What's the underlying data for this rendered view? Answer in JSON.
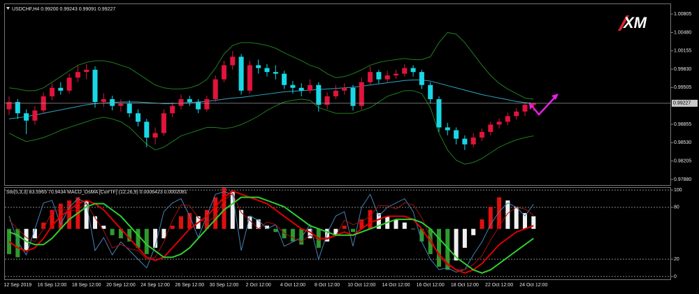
{
  "chart_data": [
    {
      "type": "candlestick",
      "title": "USDCHF,H4  0.99200 0.99243 0.99091 0.99227",
      "watermark": "XM",
      "categories": [
        null,
        "12 Sep 2019",
        null,
        null,
        null,
        "16 Sep 12:00",
        null,
        null,
        null,
        "18 Sep 12:00",
        null,
        null,
        null,
        "20 Sep 12:00",
        null,
        null,
        null,
        "24 Sep 12:00",
        null,
        null,
        null,
        "26 Sep 12:00",
        null,
        null,
        null,
        "30 Sep 12:00",
        null,
        null,
        null,
        "2 Oct 12:00",
        null,
        null,
        null,
        "4 Oct 12:00",
        null,
        null,
        null,
        "8 Oct 12:00",
        null,
        null,
        null,
        "10 Oct 12:00",
        null,
        null,
        null,
        "14 Oct 12:00",
        null,
        null,
        null,
        "16 Oct 12:00",
        null,
        null,
        null,
        "18 Oct 12:00",
        null,
        null,
        null,
        "22 Oct 12:00",
        null,
        null,
        null,
        "24 Oct 12:00"
      ],
      "open": [
        0.9912,
        0.9925,
        0.9905,
        0.9892,
        0.991,
        0.9935,
        0.995,
        0.9945,
        0.9968,
        0.9978,
        0.9982,
        0.9925,
        0.993,
        0.9918,
        0.9922,
        0.9905,
        0.989,
        0.9862,
        0.987,
        0.9905,
        0.9918,
        0.993,
        0.9925,
        0.9912,
        0.993,
        0.9965,
        0.999,
        1.0005,
        0.9945,
        0.999,
        0.9985,
        0.9978,
        0.9975,
        0.9955,
        0.995,
        0.9945,
        0.9955,
        0.992,
        0.9935,
        0.9945,
        0.995,
        0.9918,
        0.996,
        0.9978,
        0.9965,
        0.9972,
        0.9975,
        0.9985,
        0.9978,
        0.9955,
        0.993,
        0.988,
        0.9875,
        0.986,
        0.985,
        0.9862,
        0.9872,
        0.9885,
        0.989,
        0.99,
        0.9908,
        0.992
      ],
      "high": [
        0.9935,
        0.993,
        0.9912,
        0.9918,
        0.9942,
        0.9958,
        0.996,
        0.9975,
        0.999,
        0.9992,
        0.9988,
        0.994,
        0.9936,
        0.993,
        0.9928,
        0.9912,
        0.9895,
        0.988,
        0.9912,
        0.9925,
        0.9938,
        0.9936,
        0.993,
        0.9936,
        0.9972,
        0.9998,
        1.0015,
        1.001,
        0.9998,
        1.0,
        0.9992,
        0.999,
        0.998,
        0.9962,
        0.9958,
        0.9965,
        0.996,
        0.9942,
        0.9955,
        0.9958,
        0.9955,
        0.9968,
        0.9988,
        0.9982,
        0.998,
        0.9982,
        0.9992,
        0.999,
        0.9982,
        0.996,
        0.9935,
        0.9888,
        0.988,
        0.9866,
        0.987,
        0.9878,
        0.989,
        0.9896,
        0.9906,
        0.9914,
        0.9924,
        0.99243
      ],
      "low": [
        0.9902,
        0.9895,
        0.9868,
        0.9885,
        0.9904,
        0.9928,
        0.9938,
        0.994,
        0.996,
        0.9965,
        0.9915,
        0.9916,
        0.991,
        0.9908,
        0.9898,
        0.9882,
        0.9845,
        0.985,
        0.9865,
        0.9898,
        0.9912,
        0.9918,
        0.9905,
        0.9908,
        0.9925,
        0.996,
        0.9982,
        0.9938,
        0.994,
        0.9975,
        0.997,
        0.9965,
        0.9948,
        0.994,
        0.9935,
        0.994,
        0.9908,
        0.9912,
        0.993,
        0.9938,
        0.991,
        0.9912,
        0.9955,
        0.9958,
        0.996,
        0.9966,
        0.997,
        0.997,
        0.9948,
        0.9922,
        0.9872,
        0.9866,
        0.985,
        0.984,
        0.9845,
        0.9856,
        0.9866,
        0.9878,
        0.9884,
        0.9894,
        0.99,
        0.99091
      ],
      "close": [
        0.9925,
        0.9905,
        0.9892,
        0.991,
        0.9935,
        0.995,
        0.9945,
        0.9968,
        0.9978,
        0.9982,
        0.9925,
        0.993,
        0.9918,
        0.9922,
        0.9905,
        0.989,
        0.9862,
        0.987,
        0.9905,
        0.9918,
        0.993,
        0.9925,
        0.9912,
        0.993,
        0.9965,
        0.999,
        1.0005,
        0.9945,
        0.999,
        0.9985,
        0.9978,
        0.9975,
        0.9955,
        0.995,
        0.9945,
        0.9955,
        0.992,
        0.9935,
        0.9945,
        0.995,
        0.9918,
        0.996,
        0.9978,
        0.9965,
        0.9972,
        0.9975,
        0.9985,
        0.9978,
        0.9955,
        0.993,
        0.988,
        0.9875,
        0.986,
        0.985,
        0.9862,
        0.9872,
        0.9885,
        0.989,
        0.99,
        0.9908,
        0.992,
        0.99227
      ],
      "up_color": "#e0143c",
      "down_color": "#19d7e6",
      "lines": [
        {
          "color": "#2aa7c4",
          "width": 1,
          "values": [
            0.9895,
            0.9897,
            0.9899,
            0.9902,
            0.9905,
            0.9908,
            0.9911,
            0.9914,
            0.9917,
            0.992,
            0.9922,
            0.9923,
            0.9924,
            0.9925,
            0.9925,
            0.9925,
            0.9924,
            0.9923,
            0.9922,
            0.9922,
            0.9923,
            0.9924,
            0.9925,
            0.9926,
            0.9928,
            0.993,
            0.9932,
            0.9933,
            0.9935,
            0.9937,
            0.9939,
            0.9941,
            0.9943,
            0.9944,
            0.9945,
            0.9946,
            0.9947,
            0.9948,
            0.9949,
            0.995,
            0.9951,
            0.9953,
            0.9955,
            0.9957,
            0.9959,
            0.9961,
            0.9963,
            0.9964,
            0.9964,
            0.9962,
            0.9958,
            0.9954,
            0.995,
            0.9946,
            0.9942,
            0.9938,
            0.9935,
            0.9932,
            0.9929,
            0.9926,
            0.9924,
            0.9922
          ]
        },
        {
          "color": "#1f7f1f",
          "width": 1,
          "values": [
            0.995,
            0.9948,
            0.9945,
            0.9945,
            0.995,
            0.996,
            0.997,
            0.998,
            0.999,
            0.9995,
            0.9998,
            0.9998,
            0.9995,
            0.999,
            0.9985,
            0.9975,
            0.9965,
            0.9955,
            0.995,
            0.9948,
            0.9948,
            0.995,
            0.9955,
            0.9965,
            0.9985,
            1.001,
            1.0025,
            1.003,
            1.003,
            1.0028,
            1.0025,
            1.002,
            1.0012,
            1.0005,
            0.9998,
            0.999,
            0.9985,
            0.9975,
            0.9968,
            0.997,
            0.9975,
            0.9982,
            0.999,
            0.9995,
            0.9998,
            1.0,
            1.0002,
            1.0,
            1.0,
            1.0005,
            1.003,
            1.0048,
            1.0045,
            1.003,
            1.001,
            0.999,
            0.9972,
            0.9958,
            0.9948,
            0.994,
            0.9932,
            0.993
          ]
        },
        {
          "color": "#1f7f1f",
          "width": 1,
          "values": [
            0.987,
            0.9862,
            0.9855,
            0.9858,
            0.9862,
            0.9868,
            0.9875,
            0.988,
            0.9885,
            0.989,
            0.9895,
            0.9898,
            0.9895,
            0.989,
            0.988,
            0.9865,
            0.985,
            0.984,
            0.9845,
            0.9855,
            0.9865,
            0.987,
            0.9875,
            0.988,
            0.988,
            0.9878,
            0.988,
            0.9885,
            0.9892,
            0.99,
            0.991,
            0.9918,
            0.9925,
            0.9928,
            0.993,
            0.9928,
            0.9915,
            0.991,
            0.9905,
            0.9905,
            0.9905,
            0.991,
            0.9915,
            0.9925,
            0.9935,
            0.994,
            0.9945,
            0.9945,
            0.994,
            0.9915,
            0.987,
            0.984,
            0.9822,
            0.9815,
            0.9818,
            0.9825,
            0.9835,
            0.9845,
            0.9852,
            0.9858,
            0.9862,
            0.9865
          ]
        }
      ],
      "ylim": [
        0.9778,
        1.0098
      ],
      "yticks": [
        1.00805,
        {
          "value": 1.0048,
          "label": "1.00480"
        },
        1.00155,
        {
          "value": 0.9983,
          "label": "0.99830"
        },
        0.99505,
        0.98855,
        {
          "value": 0.9853,
          "label": "0.98530"
        },
        0.98205,
        {
          "value": 0.9788,
          "label": "0.97880"
        }
      ]
    },
    {
      "type": "oscillator",
      "title": "Sto(5,3,3) 83.5965 70.9434 MACD_OsMA [CurrTF] (12,26,9) 0.0006423 0.0002081",
      "ylim": [
        -3.3,
        102.5
      ],
      "yticks": [
        100,
        80,
        20,
        0
      ],
      "y2lim": [
        -0.0016,
        0.0013
      ],
      "histogram": {
        "axis": "y2",
        "up_color": "#e01010",
        "down_color": "#2e9a2e",
        "fade_color": "#f0f0f0",
        "values": [
          -0.0008,
          -0.0009,
          -0.0007,
          -0.0003,
          0.0002,
          0.0006,
          0.0008,
          0.0009,
          0.001,
          0.0009,
          0.0004,
          0.0001,
          -0.0002,
          -0.0003,
          -0.0004,
          -0.0006,
          -0.0008,
          -0.0006,
          -0.0003,
          0.0001,
          0.0004,
          0.0005,
          0.0004,
          0.0006,
          0.001,
          0.0013,
          0.0012,
          0.0006,
          0.0004,
          0.0003,
          0.0001,
          -0.0001,
          -0.0003,
          -0.0004,
          -0.0005,
          -0.0003,
          -0.0006,
          -0.0004,
          -0.0002,
          0.0001,
          -0.0001,
          0.0003,
          0.0006,
          0.0005,
          0.0004,
          0.0003,
          0.0002,
          0.0,
          -0.0004,
          -0.0008,
          -0.0012,
          -0.0013,
          -0.001,
          -0.0006,
          -0.0002,
          0.0003,
          0.0007,
          0.001,
          0.0009,
          0.0007,
          0.0005,
          0.0004
        ]
      },
      "lines": [
        {
          "color": "#4682b4",
          "width": 1,
          "axis": "y",
          "values": [
            70,
            40,
            25,
            55,
            85,
            88,
            60,
            80,
            90,
            85,
            30,
            45,
            25,
            40,
            30,
            20,
            10,
            35,
            75,
            85,
            90,
            70,
            45,
            70,
            95,
            98,
            95,
            30,
            70,
            65,
            55,
            60,
            35,
            40,
            45,
            60,
            20,
            50,
            70,
            75,
            35,
            80,
            95,
            70,
            80,
            85,
            90,
            75,
            40,
            20,
            8,
            10,
            5,
            8,
            25,
            40,
            60,
            75,
            85,
            80,
            70,
            83.5965
          ]
        },
        {
          "color": "#a01010",
          "width": 1,
          "axis": "y",
          "values": [
            65,
            55,
            45,
            40,
            55,
            75,
            78,
            76,
            77,
            85,
            68,
            53,
            33,
            37,
            32,
            30,
            20,
            22,
            40,
            65,
            83,
            82,
            68,
            62,
            70,
            88,
            96,
            74,
            65,
            55,
            63,
            60,
            50,
            45,
            40,
            48,
            42,
            43,
            47,
            65,
            60,
            63,
            70,
            82,
            82,
            78,
            85,
            83,
            68,
            45,
            23,
            13,
            8,
            8,
            14,
            24,
            42,
            58,
            73,
            80,
            78,
            70.9434
          ]
        },
        {
          "color": "#e00000",
          "width": 2,
          "axis": "y2",
          "values": [
            -0.0004,
            -0.0006,
            -0.0007,
            -0.0006,
            -0.0003,
            0.0001,
            0.0004,
            0.0006,
            0.0008,
            0.0009,
            0.0008,
            0.0006,
            0.0003,
            0.0,
            -0.0003,
            -0.0006,
            -0.0009,
            -0.001,
            -0.0009,
            -0.0006,
            -0.0003,
            0.0,
            0.0002,
            0.0004,
            0.0007,
            0.001,
            0.0012,
            0.0011,
            0.001,
            0.0009,
            0.0008,
            0.0006,
            0.0004,
            0.0002,
            0.0,
            -0.0001,
            -0.0003,
            -0.0003,
            -0.0002,
            -0.0001,
            -0.0002,
            0.0,
            0.0002,
            0.0003,
            0.0004,
            0.0004,
            0.0004,
            0.0003,
            0.0,
            -0.0004,
            -0.0008,
            -0.0011,
            -0.0013,
            -0.0014,
            -0.0013,
            -0.0011,
            -0.0008,
            -0.0005,
            -0.0003,
            -0.0001,
            0.0,
            0.0001
          ]
        },
        {
          "color": "#32cd32",
          "width": 2,
          "axis": "y2",
          "values": [
            -0.0001,
            -0.0002,
            -0.0004,
            -0.0005,
            -0.0005,
            -0.0003,
            0.0,
            0.0003,
            0.0005,
            0.0007,
            0.0008,
            0.0008,
            0.0006,
            0.0004,
            0.0001,
            -0.0002,
            -0.0005,
            -0.0007,
            -0.0009,
            -0.0009,
            -0.0008,
            -0.0006,
            -0.0003,
            0.0,
            0.0003,
            0.0006,
            0.0008,
            0.001,
            0.001,
            0.001,
            0.0009,
            0.0008,
            0.0007,
            0.0005,
            0.0003,
            0.0001,
            0.0,
            -0.0001,
            -0.0002,
            -0.0002,
            -0.0002,
            -0.0001,
            0.0,
            0.0001,
            0.0002,
            0.0003,
            0.0003,
            0.0003,
            0.0002,
            0.0,
            -0.0003,
            -0.0006,
            -0.0009,
            -0.0011,
            -0.0013,
            -0.0014,
            -0.0013,
            -0.0011,
            -0.0009,
            -0.0007,
            -0.0005,
            -0.0003
          ]
        }
      ]
    }
  ]
}
